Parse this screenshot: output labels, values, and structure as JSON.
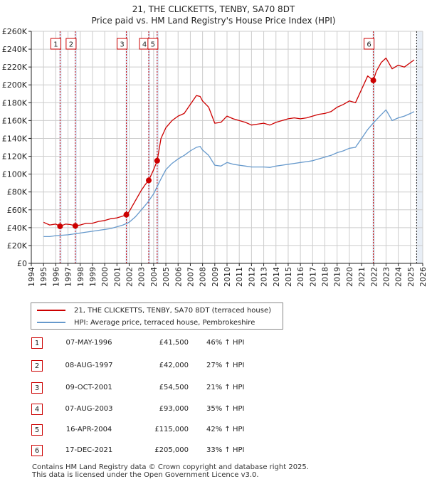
{
  "title": "21, THE CLICKETTS, TENBY, SA70 8DT",
  "subtitle": "Price paid vs. HM Land Registry's House Price Index (HPI)",
  "colors": {
    "price": "#cc0000",
    "hpi": "#6699cc",
    "shade": "#dbe6f4",
    "grid": "#cccccc"
  },
  "legend": {
    "price_label": "21, THE CLICKETTS, TENBY, SA70 8DT (terraced house)",
    "hpi_label": "HPI: Average price, terraced house, Pembrokeshire"
  },
  "transactions": [
    {
      "num": "1",
      "date": "07-MAY-1996",
      "price": "£41,500",
      "hpi": "46% ↑ HPI"
    },
    {
      "num": "2",
      "date": "08-AUG-1997",
      "price": "£42,000",
      "hpi": "27% ↑ HPI"
    },
    {
      "num": "3",
      "date": "09-OCT-2001",
      "price": "£54,500",
      "hpi": "21% ↑ HPI"
    },
    {
      "num": "4",
      "date": "07-AUG-2003",
      "price": "£93,000",
      "hpi": "35% ↑ HPI"
    },
    {
      "num": "5",
      "date": "16-APR-2004",
      "price": "£115,000",
      "hpi": "42% ↑ HPI"
    },
    {
      "num": "6",
      "date": "17-DEC-2021",
      "price": "£205,000",
      "hpi": "33% ↑ HPI"
    }
  ],
  "footer": {
    "line1": "Contains HM Land Registry data © Crown copyright and database right 2025.",
    "line2": "This data is licensed under the Open Government Licence v3.0."
  },
  "chart_data": {
    "type": "line",
    "title": "21, THE CLICKETTS, TENBY, SA70 8DT",
    "subtitle": "Price paid vs. HM Land Registry's House Price Index (HPI)",
    "xlim": [
      1994,
      2026
    ],
    "ylim": [
      0,
      260000
    ],
    "x_ticks": [
      1994,
      1995,
      1996,
      1997,
      1998,
      1999,
      2000,
      2001,
      2002,
      2003,
      2004,
      2005,
      2006,
      2007,
      2008,
      2009,
      2010,
      2011,
      2012,
      2013,
      2014,
      2015,
      2016,
      2017,
      2018,
      2019,
      2020,
      2021,
      2022,
      2023,
      2024,
      2025,
      2026
    ],
    "y_ticks": [
      0,
      20000,
      40000,
      60000,
      80000,
      100000,
      120000,
      140000,
      160000,
      180000,
      200000,
      220000,
      240000,
      260000
    ],
    "y_tick_labels": [
      "£0",
      "£20K",
      "£40K",
      "£60K",
      "£80K",
      "£100K",
      "£120K",
      "£140K",
      "£160K",
      "£180K",
      "£200K",
      "£220K",
      "£240K",
      "£260K"
    ],
    "grid": true,
    "future_shade_from": 2025.5,
    "events": [
      {
        "label": "1",
        "x": 1996.35,
        "y": 41500
      },
      {
        "label": "2",
        "x": 1997.6,
        "y": 42000
      },
      {
        "label": "3",
        "x": 2001.77,
        "y": 54500
      },
      {
        "label": "4",
        "x": 2003.6,
        "y": 93000
      },
      {
        "label": "5",
        "x": 2004.29,
        "y": 115000
      },
      {
        "label": "6",
        "x": 2021.96,
        "y": 205000
      }
    ],
    "series": [
      {
        "name": "21, THE CLICKETTS, TENBY, SA70 8DT (terraced house)",
        "color": "#cc0000",
        "x": [
          1995,
          1995.5,
          1996,
          1996.35,
          1996.8,
          1997.2,
          1997.6,
          1998,
          1998.5,
          1999,
          1999.5,
          2000,
          2000.5,
          2001,
          2001.5,
          2001.77,
          2002,
          2002.5,
          2003,
          2003.3,
          2003.6,
          2004,
          2004.29,
          2004.6,
          2005,
          2005.5,
          2006,
          2006.5,
          2007,
          2007.5,
          2007.8,
          2008,
          2008.5,
          2009,
          2009.5,
          2010,
          2010.5,
          2011,
          2011.5,
          2012,
          2012.5,
          2013,
          2013.5,
          2014,
          2014.5,
          2015,
          2015.5,
          2016,
          2016.5,
          2017,
          2017.5,
          2018,
          2018.5,
          2019,
          2019.5,
          2020,
          2020.5,
          2021,
          2021.5,
          2021.96,
          2022.2,
          2022.6,
          2023,
          2023.5,
          2024,
          2024.5,
          2025,
          2025.3
        ],
        "y": [
          46000,
          43000,
          44000,
          41500,
          44000,
          43500,
          42000,
          43000,
          45000,
          45000,
          47000,
          48000,
          50000,
          51000,
          53000,
          54500,
          58000,
          70000,
          82000,
          88000,
          93000,
          105000,
          115000,
          140000,
          152000,
          160000,
          165000,
          168000,
          178000,
          188000,
          187000,
          182000,
          175000,
          157000,
          158000,
          165000,
          162000,
          160000,
          158000,
          155000,
          156000,
          157000,
          155000,
          158000,
          160000,
          162000,
          163000,
          162000,
          163000,
          165000,
          167000,
          168000,
          170000,
          175000,
          178000,
          182000,
          180000,
          195000,
          210000,
          205000,
          215000,
          225000,
          230000,
          218000,
          222000,
          220000,
          225000,
          228000
        ]
      },
      {
        "name": "HPI: Average price, terraced house, Pembrokeshire",
        "color": "#6699cc",
        "x": [
          1995,
          1995.5,
          1996,
          1996.5,
          1997,
          1997.5,
          1998,
          1998.5,
          1999,
          1999.5,
          2000,
          2000.5,
          2001,
          2001.5,
          2002,
          2002.5,
          2003,
          2003.5,
          2004,
          2004.5,
          2005,
          2005.5,
          2006,
          2006.5,
          2007,
          2007.5,
          2007.8,
          2008,
          2008.5,
          2009,
          2009.5,
          2010,
          2010.5,
          2011,
          2011.5,
          2012,
          2012.5,
          2013,
          2013.5,
          2014,
          2014.5,
          2015,
          2015.5,
          2016,
          2016.5,
          2017,
          2017.5,
          2018,
          2018.5,
          2019,
          2019.5,
          2020,
          2020.5,
          2021,
          2021.5,
          2022,
          2022.5,
          2023,
          2023.5,
          2024,
          2024.5,
          2025,
          2025.3
        ],
        "y": [
          30000,
          30000,
          31000,
          31500,
          32000,
          33000,
          34000,
          35000,
          36000,
          37000,
          38000,
          39000,
          41000,
          43000,
          46000,
          52000,
          60000,
          68000,
          78000,
          92000,
          105000,
          112000,
          117000,
          121000,
          126000,
          130000,
          131000,
          127000,
          121000,
          110000,
          109000,
          113000,
          111000,
          110000,
          109000,
          108000,
          108000,
          108000,
          107500,
          109000,
          110000,
          111000,
          112000,
          113000,
          114000,
          115000,
          117000,
          119000,
          121000,
          124000,
          126000,
          129000,
          130000,
          140000,
          150000,
          158000,
          165000,
          172000,
          160000,
          163000,
          165000,
          168000,
          170000
        ]
      }
    ]
  }
}
